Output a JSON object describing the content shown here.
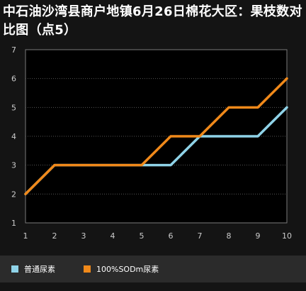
{
  "chart_data": {
    "type": "line",
    "title": "中石油沙湾县商户地镇6月26日棉花大区：果枝数对比图（点5）",
    "x": [
      1,
      2,
      3,
      4,
      5,
      6,
      7,
      8,
      9,
      10
    ],
    "series": [
      {
        "name": "普通尿素",
        "values": [
          2,
          3,
          3,
          3,
          3,
          3,
          4,
          4,
          4,
          5
        ],
        "color": "#8fd3e8"
      },
      {
        "name": "100%SODm尿素",
        "values": [
          2,
          3,
          3,
          3,
          3,
          4,
          4,
          5,
          5,
          6
        ],
        "color": "#f0891a"
      }
    ],
    "xlim": [
      1,
      10
    ],
    "ylim": [
      1,
      7
    ],
    "yticks": [
      1,
      2,
      3,
      4,
      5,
      6,
      7
    ],
    "grid": true,
    "legend": "bottom"
  }
}
